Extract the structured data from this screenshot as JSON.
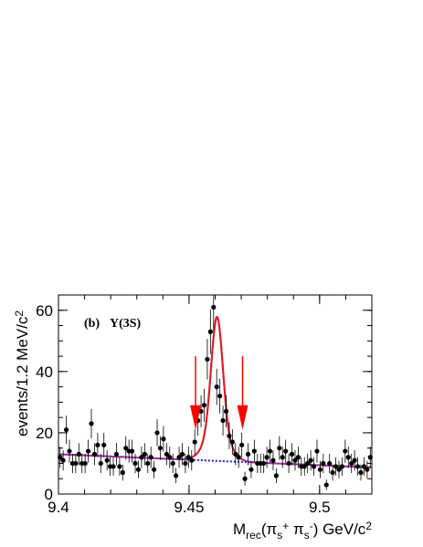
{
  "chart_data": {
    "type": "scatter",
    "title": "",
    "annotation_tag": "(b)",
    "annotation_text": "Υ(3S)",
    "xlabel": "M_rec(π_s^+ π_s^-) GeV/c^2",
    "ylabel": "events/1.2 MeV/c^2",
    "xlim": [
      9.4,
      9.52
    ],
    "ylim": [
      0,
      65
    ],
    "xticks": [
      9.4,
      9.45,
      9.5
    ],
    "xtick_labels": [
      "9.4",
      "9.45",
      "9.5"
    ],
    "yticks": [
      0,
      20,
      40,
      60
    ],
    "ytick_labels": [
      "0",
      "20",
      "40",
      "60"
    ],
    "grid": false,
    "legend": "none",
    "signal_window_arrows_x": [
      9.4525,
      9.4705
    ],
    "colors": {
      "points": "#000000",
      "fit_total": "#e31a1c",
      "fit_background": "#1f1fd1",
      "fit_overlay": "#a0309e",
      "arrows": "#ff0000"
    },
    "series": [
      {
        "x": [
          9.4006,
          9.4018,
          9.403,
          9.4042,
          9.4054,
          9.4066,
          9.4078,
          9.409,
          9.4102,
          9.4114,
          9.4126,
          9.4138,
          9.415,
          9.4162,
          9.4174,
          9.4186,
          9.4198,
          9.421,
          9.4222,
          9.4234,
          9.4246,
          9.4258,
          9.427,
          9.4282,
          9.4294,
          9.4306,
          9.4318,
          9.433,
          9.4342,
          9.4354,
          9.4366,
          9.4378,
          9.439,
          9.4402,
          9.4414,
          9.4426,
          9.4438,
          9.445,
          9.4462,
          9.4474,
          9.4486,
          9.4498,
          9.451,
          9.4522,
          9.4534,
          9.4546,
          9.4558,
          9.457,
          9.4582,
          9.4594,
          9.4606,
          9.4618,
          9.463,
          9.4642,
          9.4654,
          9.4666,
          9.4678,
          9.469,
          9.4702,
          9.4714,
          9.4726,
          9.4738,
          9.475,
          9.4762,
          9.4774,
          9.4786,
          9.4798,
          9.481,
          9.4822,
          9.4834,
          9.4846,
          9.4858,
          9.487,
          9.4882,
          9.4894,
          9.4906,
          9.4918,
          9.493,
          9.4942,
          9.4954,
          9.4966,
          9.4978,
          9.499,
          9.5002,
          9.5014,
          9.5026,
          9.5038,
          9.505,
          9.5062,
          9.5074,
          9.5086,
          9.5098,
          9.511,
          9.5122,
          9.5134,
          9.5146,
          9.5158,
          9.517,
          9.5182,
          9.5194
        ],
        "y": [
          12,
          11,
          21,
          14,
          10,
          10,
          13,
          10,
          10,
          14,
          23,
          13,
          16,
          10,
          16,
          11,
          9,
          9,
          13,
          9,
          7,
          15,
          14,
          14,
          10,
          8,
          12,
          13,
          10,
          12,
          8,
          20,
          15,
          18,
          13,
          12,
          10,
          6,
          12,
          13,
          10,
          12,
          11,
          17,
          24,
          27,
          29,
          44,
          53,
          61,
          35,
          32,
          24,
          27,
          19,
          17,
          13,
          12,
          16,
          5,
          13,
          8,
          14,
          10,
          10,
          10,
          12,
          14,
          11,
          6,
          15,
          12,
          14,
          10,
          13,
          11,
          12,
          9,
          9,
          10,
          11,
          9,
          14,
          8,
          10,
          3,
          10,
          7,
          9,
          8,
          9,
          14,
          12,
          10,
          11,
          9,
          7,
          9,
          8,
          12
        ],
        "yerr_note": "Poisson (sqrt(N))"
      }
    ],
    "fit_model": {
      "background": {
        "type": "linear",
        "at_x_min": 13.0,
        "slope_per_unit_x": -36.0
      },
      "signal": {
        "type": "gaussian-like peak",
        "mean": 9.4607,
        "sigma": 0.0022,
        "amplitude": 47.0
      }
    }
  }
}
